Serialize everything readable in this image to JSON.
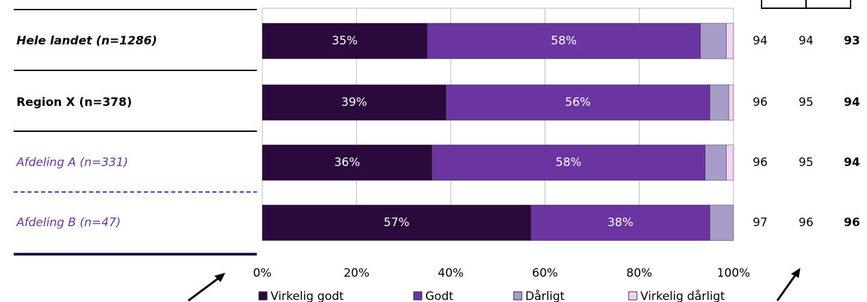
{
  "chart_data": {
    "type": "stacked_barh",
    "categories": [
      "Hele landet (n=1286)",
      "Region X (n=378)",
      "Afdeling A (n=331)",
      "Afdeling B (n=47)"
    ],
    "series": [
      {
        "name": "Virkelig godt",
        "color": "#2a0a3c",
        "values": [
          35,
          39,
          36,
          57
        ],
        "value_labels": [
          "35%",
          "39%",
          "36%",
          "57%"
        ]
      },
      {
        "name": "Godt",
        "color": "#6a35a0",
        "values": [
          58,
          56,
          58,
          38
        ],
        "value_labels": [
          "58%",
          "56%",
          "58%",
          "38%"
        ]
      },
      {
        "name": "Dårligt",
        "color": "#a89cc8",
        "values": [
          5.5,
          4,
          4.5,
          5
        ]
      },
      {
        "name": "Virkelig dårligt",
        "color": "#f2d4f2",
        "values": [
          1.5,
          1,
          1.5,
          0
        ]
      }
    ],
    "xlim": [
      0,
      100
    ],
    "xticks": [
      {
        "value": 0,
        "label": "0%"
      },
      {
        "value": 20,
        "label": "20%"
      },
      {
        "value": 40,
        "label": "40%"
      },
      {
        "value": 60,
        "label": "60%"
      },
      {
        "value": 80,
        "label": "80%"
      },
      {
        "value": 100,
        "label": "100%"
      }
    ],
    "grid": true,
    "legend": "bottom",
    "columns": [
      [
        94,
        96,
        96,
        97
      ],
      [
        94,
        95,
        95,
        96
      ],
      [
        93,
        94,
        94,
        96
      ]
    ]
  }
}
